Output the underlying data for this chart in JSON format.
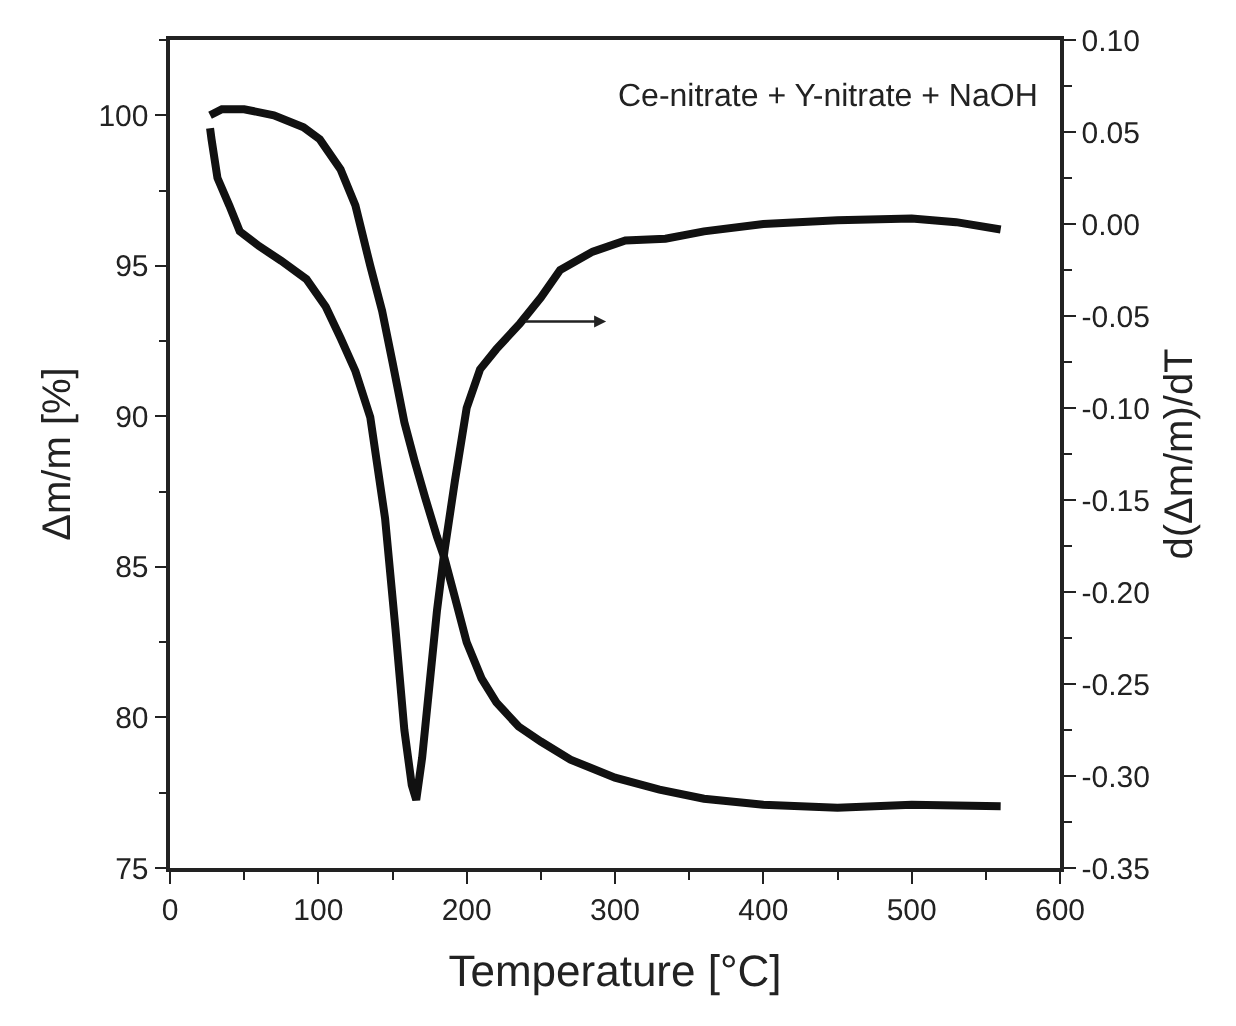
{
  "chart_data": {
    "type": "line",
    "xlabel": "Temperature [°C]",
    "ylabel": "Δm/m [%]",
    "y2label": "d(Δm/m)/dT",
    "annotations": [
      "Ce-nitrate + Y-nitrate + NaOH"
    ],
    "xlim": [
      0,
      600
    ],
    "xticks": [
      0,
      100,
      200,
      300,
      400,
      500,
      600
    ],
    "ylim": [
      75,
      102.5
    ],
    "yticks": [
      75,
      80,
      85,
      90,
      95,
      100
    ],
    "y2lim": [
      -0.35,
      0.1
    ],
    "y2ticks": [
      -0.35,
      {
        "value": -0.3,
        "label": "-0.30"
      },
      -0.25,
      {
        "value": -0.2,
        "label": "-0.20"
      },
      -0.15,
      {
        "value": -0.1,
        "label": "-0.10"
      },
      -0.05,
      {
        "value": 0,
        "label": "0.00"
      },
      0.05,
      {
        "value": 0.1,
        "label": "0.10"
      }
    ],
    "marker": "none",
    "line_style": "solid",
    "series": [
      {
        "color": "#111111",
        "x": [
          27,
          35,
          50,
          70,
          90,
          101,
          115,
          125,
          135,
          143,
          150,
          158,
          165,
          172,
          180,
          185,
          192,
          200,
          210,
          220,
          235,
          250,
          270,
          300,
          330,
          360,
          400,
          450,
          500,
          560
        ],
        "values": [
          100.0,
          100.2,
          100.2,
          100.0,
          99.6,
          99.2,
          98.2,
          97.0,
          95.0,
          93.5,
          91.8,
          89.8,
          88.5,
          87.3,
          86.0,
          85.3,
          84.0,
          82.5,
          81.3,
          80.5,
          79.7,
          79.2,
          78.6,
          78.0,
          77.6,
          77.3,
          77.1,
          77.0,
          77.1,
          77.05
        ]
      },
      {
        "color": "#111111",
        "axis": "y2",
        "x": [
          27,
          28,
          32,
          40,
          47,
          60,
          75,
          92,
          105,
          115,
          125,
          135,
          145,
          152,
          158,
          163,
          166,
          170,
          175,
          180,
          185,
          192,
          200,
          209,
          220,
          236,
          250,
          263,
          285,
          307,
          334,
          360,
          400,
          450,
          500,
          530,
          560
        ],
        "values": [
          0.052,
          0.046,
          0.025,
          0.01,
          -0.004,
          -0.012,
          -0.02,
          -0.03,
          -0.045,
          -0.062,
          -0.08,
          -0.105,
          -0.16,
          -0.22,
          -0.275,
          -0.305,
          -0.313,
          -0.29,
          -0.25,
          -0.21,
          -0.178,
          -0.14,
          -0.1,
          -0.079,
          -0.068,
          -0.054,
          -0.04,
          -0.025,
          -0.015,
          -0.009,
          -0.008,
          -0.004,
          0.0,
          0.002,
          0.003,
          0.001,
          -0.003
        ]
      }
    ]
  }
}
